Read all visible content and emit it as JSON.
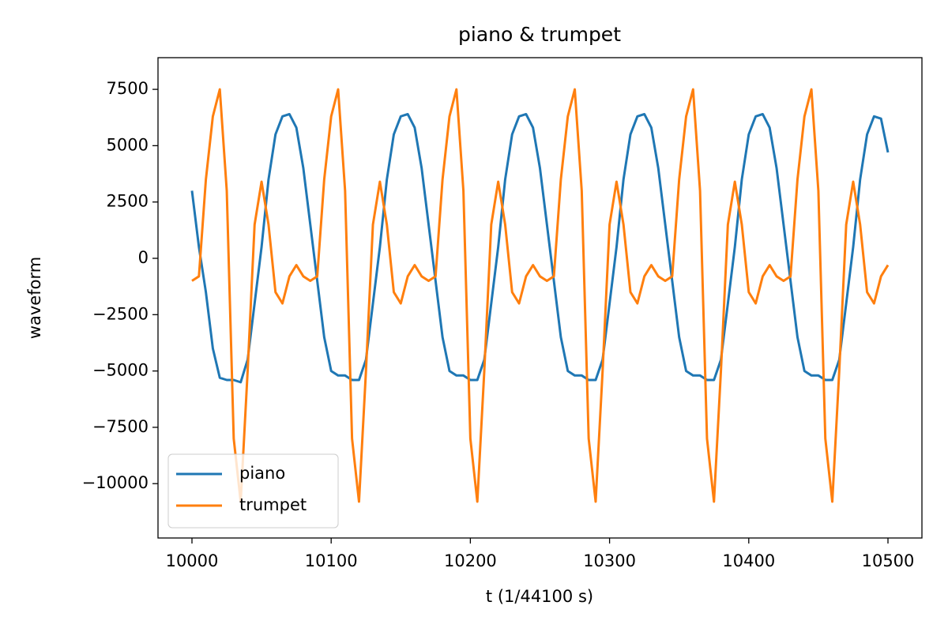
{
  "chart_data": {
    "type": "line",
    "title": "piano & trumpet",
    "xlabel": "t (1/44100 s)",
    "ylabel": "waveform",
    "x": [
      10000,
      10005,
      10010,
      10015,
      10020,
      10025,
      10030,
      10035,
      10040,
      10045,
      10050,
      10055,
      10060,
      10065,
      10070,
      10075,
      10080,
      10085,
      10090,
      10095,
      10100,
      10105,
      10110,
      10115,
      10120,
      10125,
      10130,
      10135,
      10140,
      10145,
      10150,
      10155,
      10160,
      10165,
      10170,
      10175,
      10180,
      10185,
      10190,
      10195,
      10200,
      10205,
      10210,
      10215,
      10220,
      10225,
      10230,
      10235,
      10240,
      10245,
      10250,
      10255,
      10260,
      10265,
      10270,
      10275,
      10280,
      10285,
      10290,
      10295,
      10300,
      10305,
      10310,
      10315,
      10320,
      10325,
      10330,
      10335,
      10340,
      10345,
      10350,
      10355,
      10360,
      10365,
      10370,
      10375,
      10380,
      10385,
      10390,
      10395,
      10400,
      10405,
      10410,
      10415,
      10420,
      10425,
      10430,
      10435,
      10440,
      10445,
      10450,
      10455,
      10460,
      10465,
      10470,
      10475,
      10480,
      10485,
      10490,
      10495,
      10500
    ],
    "series": [
      {
        "name": "piano",
        "color": "#1f77b4",
        "values": [
          3000,
          500,
          -1500,
          -4000,
          -5300,
          -5400,
          -5400,
          -5500,
          -4500,
          -2000,
          500,
          3500,
          5500,
          6300,
          6400,
          5800,
          4000,
          1500,
          -1000,
          -3500,
          -5000,
          -5200,
          -5200,
          -5400,
          -5400,
          -4500,
          -2000,
          500,
          3500,
          5500,
          6300,
          6400,
          5800,
          4000,
          1500,
          -1000,
          -3500,
          -5000,
          -5200,
          -5200,
          -5400,
          -5400,
          -4500,
          -2000,
          500,
          3500,
          5500,
          6300,
          6400,
          5800,
          4000,
          1500,
          -1000,
          -3500,
          -5000,
          -5200,
          -5200,
          -5400,
          -5400,
          -4500,
          -2000,
          500,
          3500,
          5500,
          6300,
          6400,
          5800,
          4000,
          1500,
          -1000,
          -3500,
          -5000,
          -5200,
          -5200,
          -5400,
          -5400,
          -4500,
          -2000,
          500,
          3500,
          5500,
          6300,
          6400,
          5800,
          4000,
          1500,
          -1000,
          -3500,
          -5000,
          -5200,
          -5200,
          -5400,
          -5400,
          -4500,
          -2000,
          500,
          3500,
          5500,
          6300,
          6200,
          4700
        ]
      },
      {
        "name": "trumpet",
        "color": "#ff7f0e",
        "values": [
          -1000,
          -800,
          3500,
          6300,
          7500,
          3000,
          -8000,
          -10800,
          -5000,
          1500,
          3400,
          1500,
          -1500,
          -2000,
          -800,
          -300,
          -800,
          -1000,
          -800,
          3500,
          6300,
          7500,
          3000,
          -8000,
          -10800,
          -5000,
          1500,
          3400,
          1500,
          -1500,
          -2000,
          -800,
          -300,
          -800,
          -1000,
          -800,
          3500,
          6300,
          7500,
          3000,
          -8000,
          -10800,
          -5000,
          1500,
          3400,
          1500,
          -1500,
          -2000,
          -800,
          -300,
          -800,
          -1000,
          -800,
          3500,
          6300,
          7500,
          3000,
          -8000,
          -10800,
          -5000,
          1500,
          3400,
          1500,
          -1500,
          -2000,
          -800,
          -300,
          -800,
          -1000,
          -800,
          3500,
          6300,
          7500,
          3000,
          -8000,
          -10800,
          -5000,
          1500,
          3400,
          1500,
          -1500,
          -2000,
          -800,
          -300,
          -800,
          -1000,
          -800,
          3500,
          6300,
          7500,
          3000,
          -8000,
          -10800,
          -5000,
          1500,
          3400,
          1500,
          -1500,
          -2000,
          -800,
          -300
        ]
      }
    ],
    "xlim": [
      9975.6,
      10524.4
    ],
    "ylim": [
      -12412,
      8906
    ],
    "xticks": [
      10000,
      10100,
      10200,
      10300,
      10400,
      10500
    ],
    "yticks": [
      {
        "value": -10000,
        "label": "−10000"
      },
      {
        "value": -7500,
        "label": "−7500"
      },
      {
        "value": -5000,
        "label": "−5000"
      },
      {
        "value": -2500,
        "label": "−2500"
      },
      0,
      2500,
      5000,
      7500
    ],
    "legend": "lower left",
    "grid": false
  }
}
